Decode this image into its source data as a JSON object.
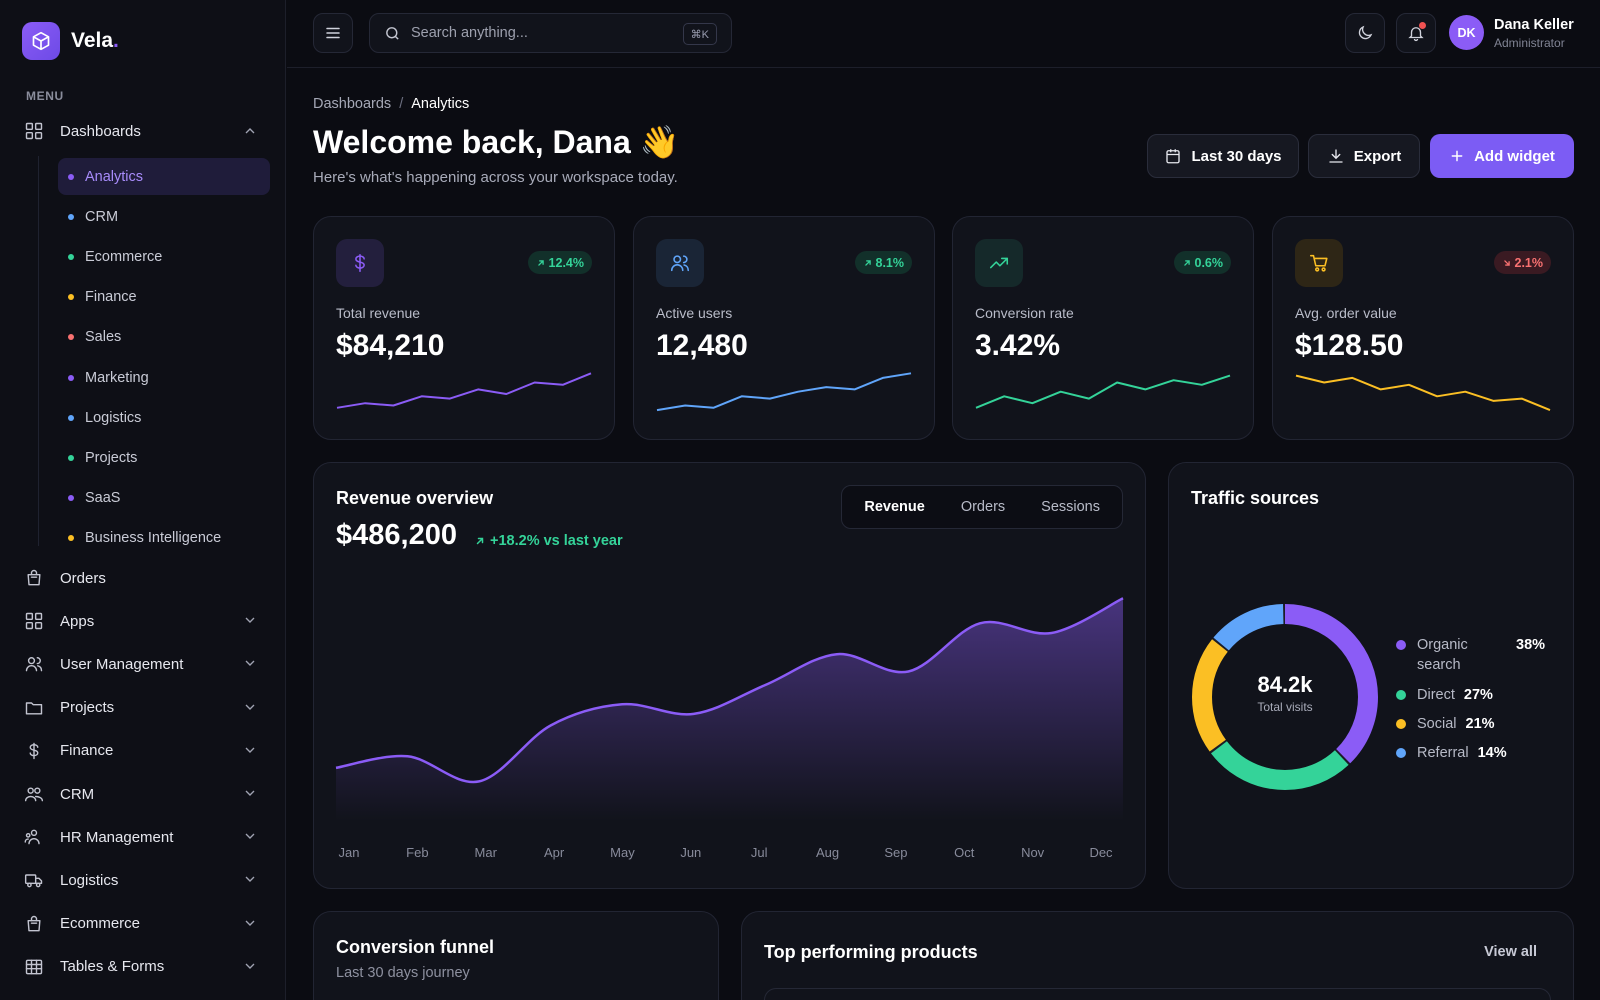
{
  "brand": {
    "name": "Vela",
    "dot": "."
  },
  "sidebar": {
    "caption": "MENU",
    "dashboards_label": "Dashboards",
    "subitems": [
      {
        "label": "Analytics",
        "color": "#8b5cf6",
        "active": true
      },
      {
        "label": "CRM",
        "color": "#60a5fa"
      },
      {
        "label": "Ecommerce",
        "color": "#34d399"
      },
      {
        "label": "Finance",
        "color": "#fbbf24"
      },
      {
        "label": "Sales",
        "color": "#f87171"
      },
      {
        "label": "Marketing",
        "color": "#8b5cf6"
      },
      {
        "label": "Logistics",
        "color": "#60a5fa"
      },
      {
        "label": "Projects",
        "color": "#34d399"
      },
      {
        "label": "SaaS",
        "color": "#8b5cf6"
      },
      {
        "label": "Business Intelligence",
        "color": "#fbbf24"
      }
    ],
    "items": [
      {
        "label": "Orders",
        "icon": "bag-icon"
      },
      {
        "label": "Apps",
        "icon": "grid-icon"
      },
      {
        "label": "User Management",
        "icon": "users-icon"
      },
      {
        "label": "Projects",
        "icon": "folder-icon"
      },
      {
        "label": "Finance",
        "icon": "dollar-icon"
      },
      {
        "label": "CRM",
        "icon": "people-icon"
      },
      {
        "label": "HR Management",
        "icon": "user-group-icon"
      },
      {
        "label": "Logistics",
        "icon": "truck-icon"
      },
      {
        "label": "Ecommerce",
        "icon": "bag-icon"
      },
      {
        "label": "Tables & Forms",
        "icon": "table-icon"
      }
    ]
  },
  "topbar": {
    "search_placeholder": "Search anything...",
    "search_shortcut": "⌘K",
    "user": {
      "initials": "DK",
      "name": "Dana Keller",
      "role": "Administrator"
    }
  },
  "header": {
    "breadcrumb_parent": "Dashboards",
    "breadcrumb_sep": "/",
    "breadcrumb_current": "Analytics",
    "title": "Welcome back, Dana 👋",
    "subtitle": "Here's what's happening across your workspace today.",
    "range_label": "Last 30 days",
    "export_label": "Export",
    "add_widget_label": "Add widget"
  },
  "stats": [
    {
      "label": "Total revenue",
      "value": "$84,210",
      "delta": "12.4%",
      "trend": "up",
      "icon": "dollar-icon",
      "color": "#8b5cf6",
      "spark": [
        4,
        6,
        5,
        9,
        8,
        12,
        10,
        15,
        14,
        19
      ]
    },
    {
      "label": "Active users",
      "value": "12,480",
      "delta": "8.1%",
      "trend": "up",
      "icon": "users-icon",
      "color": "#60a5fa",
      "spark": [
        3,
        5,
        4,
        9,
        8,
        11,
        13,
        12,
        17,
        19
      ]
    },
    {
      "label": "Conversion rate",
      "value": "3.42%",
      "delta": "0.6%",
      "trend": "up",
      "icon": "trending-up-icon",
      "color": "#34d399",
      "spark": [
        4,
        9,
        6,
        11,
        8,
        15,
        12,
        16,
        14,
        18
      ]
    },
    {
      "label": "Avg. order value",
      "value": "$128.50",
      "delta": "2.1%",
      "trend": "down",
      "icon": "cart-icon",
      "color": "#fbbf24",
      "spark": [
        18,
        15,
        17,
        12,
        14,
        9,
        11,
        7,
        8,
        3
      ]
    }
  ],
  "revenue": {
    "title": "Revenue overview",
    "total": "$486,200",
    "delta": "+18.2% vs last year",
    "tabs": [
      "Revenue",
      "Orders",
      "Sessions"
    ],
    "active_tab": "Revenue"
  },
  "chart_data": {
    "type": "area",
    "categories": [
      "Jan",
      "Feb",
      "Mar",
      "Apr",
      "May",
      "Jun",
      "Jul",
      "Aug",
      "Sep",
      "Oct",
      "Nov",
      "Dec"
    ],
    "values": [
      12,
      18,
      5,
      34,
      45,
      40,
      55,
      71,
      62,
      87,
      82,
      100
    ],
    "ylim": [
      0,
      110
    ],
    "grid": false,
    "color": "#8b5cf6"
  },
  "traffic": {
    "title": "Traffic sources",
    "total": "84.2k",
    "total_label": "Total visits",
    "sources": [
      {
        "name": "Organic search",
        "pct": "38%",
        "value": 38,
        "color": "#8b5cf6"
      },
      {
        "name": "Direct",
        "pct": "27%",
        "value": 27,
        "color": "#34d399"
      },
      {
        "name": "Social",
        "pct": "21%",
        "value": 21,
        "color": "#fbbf24"
      },
      {
        "name": "Referral",
        "pct": "14%",
        "value": 14,
        "color": "#60a5fa"
      }
    ]
  },
  "funnel": {
    "title": "Conversion funnel",
    "subtitle": "Last 30 days journey"
  },
  "products": {
    "title": "Top performing products",
    "view_all": "View all"
  }
}
